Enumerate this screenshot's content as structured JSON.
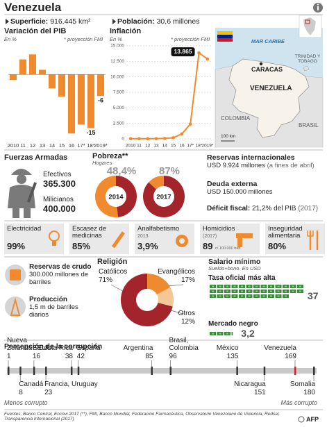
{
  "header": {
    "title": "Venezuela",
    "area_label": "Superficie:",
    "area_value": "916.445 km²",
    "population_label": "Población:",
    "population_value": "30,6 millones"
  },
  "chart_data": [
    {
      "type": "bar",
      "title": "Variación del PIB",
      "unit": "En %",
      "note": "* proyección FMI",
      "categories": [
        "2010",
        "11",
        "12",
        "13",
        "14",
        "15",
        "16",
        "17*",
        "18*",
        "2019*"
      ],
      "values": [
        -1.5,
        4.2,
        5.6,
        1.3,
        -3.9,
        -6.2,
        -16.5,
        -14,
        -15,
        -6
      ],
      "value_labels": [
        null,
        null,
        null,
        null,
        null,
        null,
        null,
        null,
        "-15",
        "-6"
      ],
      "color": "#ef8a2e",
      "ylim": [
        -18,
        8
      ]
    },
    {
      "type": "line",
      "title": "Inflación",
      "unit": "En %",
      "note": "* proyección FMI",
      "categories": [
        "2010",
        "11",
        "12",
        "13",
        "14",
        "15",
        "16",
        "17*",
        "18*",
        "2019*"
      ],
      "values": [
        28,
        26,
        21,
        41,
        64,
        181,
        800,
        2400,
        13865,
        12875
      ],
      "value_labels": [
        null,
        null,
        null,
        null,
        null,
        null,
        null,
        null,
        "13.865",
        null
      ],
      "color": "#ef8a2e",
      "ylim": [
        0,
        15000
      ],
      "yticks": [
        0,
        {
          "value": 2500,
          "label": "2.500"
        },
        {
          "value": 5000,
          "label": "5.000"
        },
        {
          "value": 7500,
          "label": "7.500"
        },
        {
          "value": 10000,
          "label": "10.000"
        },
        {
          "value": 12500,
          "label": "12.500"
        },
        {
          "value": 15000,
          "label": "15.000"
        }
      ],
      "grid": true
    },
    {
      "type": "donut",
      "title": "Pobreza**",
      "subtitle": "Hogares",
      "categories": [
        "2014",
        "2017"
      ],
      "values": [
        48.4,
        87
      ],
      "value_labels": [
        "48,4%",
        "87%"
      ],
      "color": "#a3252b",
      "rest_color": "#ef8a2e"
    },
    {
      "type": "pie",
      "title": "Religión",
      "categories": [
        "Católicos",
        "Evangélicos",
        "Otros"
      ],
      "values": [
        71,
        17,
        12
      ],
      "value_labels": [
        "71%",
        "17%",
        "12%"
      ],
      "colors": [
        "#a3252b",
        "#ef8a2e",
        "#f6c796"
      ]
    },
    {
      "type": "pictogram",
      "title": "Salario mínimo",
      "subtitle": "Sueldo+bono. En USD",
      "categories": [
        "Tasa oficial más alta",
        "Mercado negro"
      ],
      "values": [
        37,
        3.2
      ],
      "value_labels": [
        "37",
        "3,2"
      ],
      "color": "#3d8b3d"
    },
    {
      "type": "strip",
      "title": "Percepción de la corrupción",
      "xlim": [
        1,
        180
      ],
      "low_label": "Menos corrupto",
      "high_label": "Más corrupto",
      "color": "#333",
      "above": [
        {
          "name": "Nueva Zelanda",
          "value": 1
        },
        {
          "name": "EEUU",
          "value": 16
        },
        {
          "name": "Costa Rica",
          "value": 38
        },
        {
          "name": "España",
          "value": 42
        },
        {
          "name": "Argentina",
          "value": 85
        },
        {
          "name": "Brasil, Colombia",
          "value": 96
        },
        {
          "name": "México",
          "value": 135
        },
        {
          "name": "Venezuela",
          "value": 169,
          "color": "#d0202e"
        }
      ],
      "below": [
        {
          "name": "Canadá",
          "value": 8
        },
        {
          "name": "Francia, Uruguay",
          "value": 23
        },
        {
          "name": "Nicaragua",
          "value": 151
        },
        {
          "name": "Somalia",
          "value": 180
        }
      ]
    }
  ],
  "map": {
    "sea": "MAR CARIBE",
    "capital": "CARACAS",
    "country": "VENEZUELA",
    "neighbors": [
      "COLOMBIA",
      "BRASIL"
    ],
    "islands": "TRINIDAD Y TOBAGO",
    "scale": "100 km"
  },
  "armed_forces": {
    "title": "Fuerzas Armadas",
    "items": [
      {
        "label": "Efectivos",
        "value": "365.300"
      },
      {
        "label": "Milicianos",
        "value": "400.000"
      }
    ]
  },
  "finance": {
    "reserves": {
      "title": "Reservas internacionales",
      "value": "USD 9.924 millones",
      "note": "(a fines de abril)"
    },
    "debt": {
      "title": "Deuda externa",
      "value": "USD 150.000 millones"
    },
    "deficit": {
      "title": "Déficit fiscal:",
      "value": "21,2% del PIB",
      "note": "(2017)"
    }
  },
  "indicators": [
    {
      "label": "Electricidad",
      "value": "99%"
    },
    {
      "label": "Escasez de medicinas",
      "value": "85%"
    },
    {
      "label": "Analfabetismo",
      "note": "2013",
      "value": "3,9%"
    },
    {
      "label": "Homicidios",
      "note": "(2017)",
      "value": "89",
      "unit": "c/ 100.000 hab"
    },
    {
      "label": "Inseguridad alimentaria",
      "value": "80%"
    }
  ],
  "oil": [
    {
      "title": "Reservas de crudo",
      "text": "300.000 millones de barriles"
    },
    {
      "title": "Producción",
      "text": "1,5 m de barriles diarios"
    }
  ],
  "footer": {
    "sources": "Fuentes: Banco Central, Encovi 2017 (**), FMI, Banco Mundial, Federación Farmacéutica, Observatorio Venezolano de Violencia, Redsal, Transparencia Internacional (2017)",
    "credit": "AFP"
  }
}
